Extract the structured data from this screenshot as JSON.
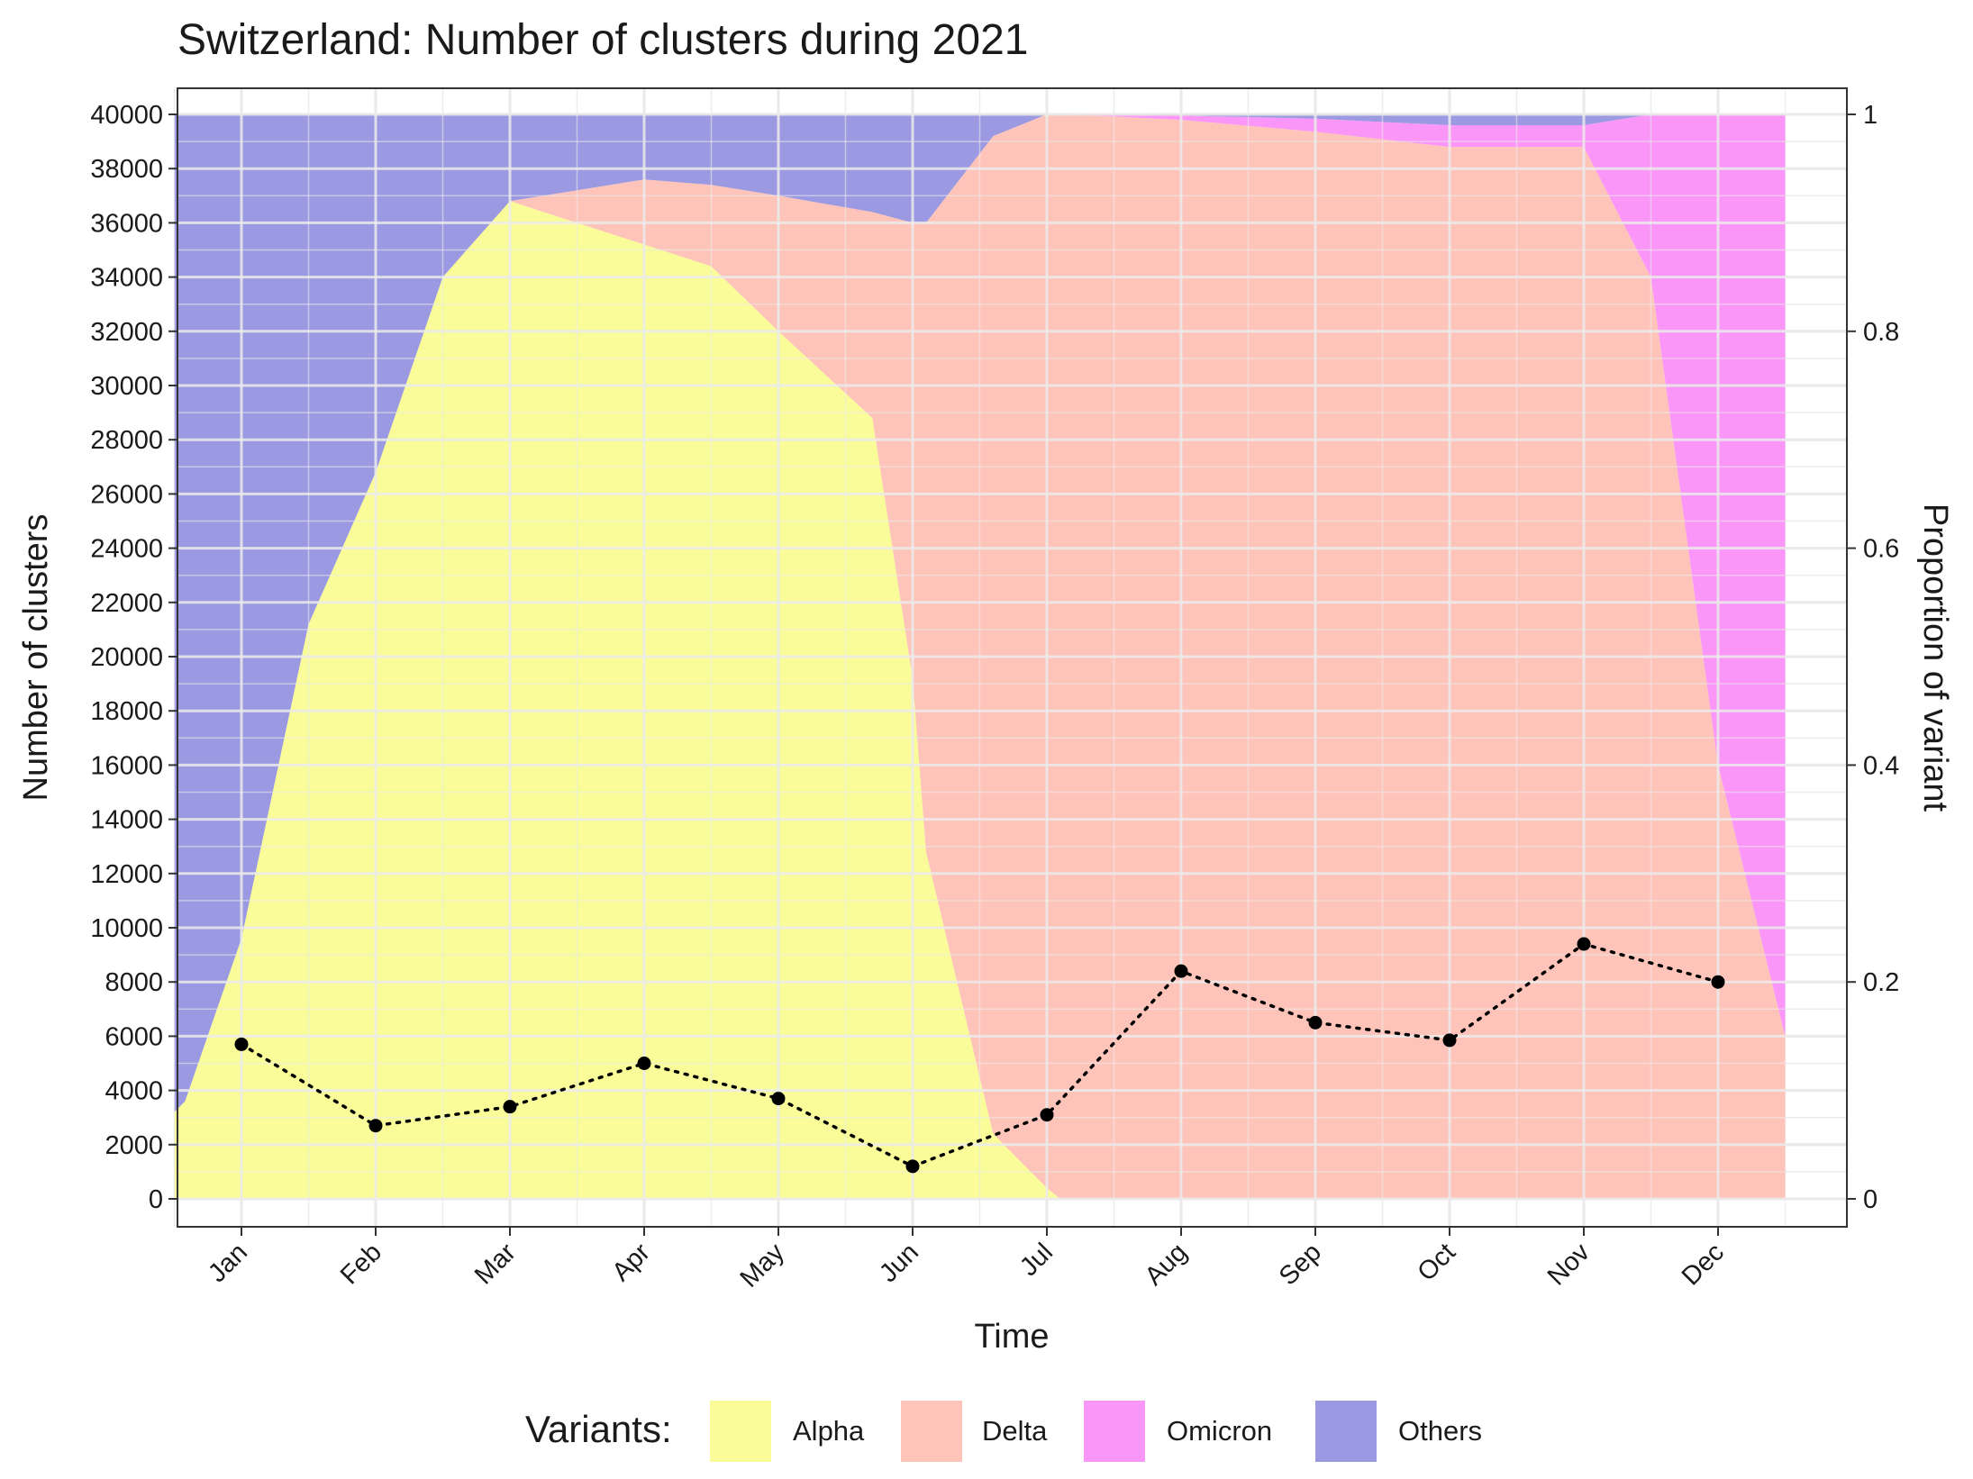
{
  "chart_data": {
    "type": "area",
    "title": "Switzerland: Number of clusters during 2021",
    "xlabel": "Time",
    "ylabel": "Number of clusters",
    "ylabel_right": "Proportion of variant",
    "y_ticks": [
      0,
      2000,
      4000,
      6000,
      8000,
      10000,
      12000,
      14000,
      16000,
      18000,
      20000,
      22000,
      24000,
      26000,
      28000,
      30000,
      32000,
      34000,
      36000,
      38000,
      40000
    ],
    "y_ticks_right": [
      "0",
      "0.2",
      "0.4",
      "0.6",
      "0.8",
      "1"
    ],
    "ylim": [
      0,
      40000
    ],
    "ylim_right": [
      0,
      1
    ],
    "x_ticks": [
      "Jan",
      "Feb",
      "Mar",
      "Apr",
      "May",
      "Jun",
      "Jul",
      "Aug",
      "Sep",
      "Oct",
      "Nov",
      "Dec"
    ],
    "xlim": [
      0.5,
      12.5
    ],
    "grid": true,
    "legend_position": "bottom",
    "legend_title": "Variants:",
    "stacked_series": [
      {
        "name": "Alpha",
        "color": "#f9fc98",
        "x": [
          0.5,
          0.58,
          1.0,
          1.5,
          2.0,
          2.5,
          3.0,
          3.5,
          4.0,
          4.5,
          5.0,
          5.7,
          6.0,
          6.1,
          6.6,
          7.0,
          7.1,
          7.5,
          8.0,
          9.0,
          10.0,
          11.0,
          11.5,
          12.0,
          12.5
        ],
        "values": [
          0.08,
          0.09,
          0.24,
          0.53,
          0.67,
          0.85,
          0.92,
          0.9,
          0.88,
          0.86,
          0.8,
          0.72,
          0.48,
          0.32,
          0.06,
          0.01,
          0.0,
          0.0,
          0.0,
          0.0,
          0.0,
          0.0,
          0.0,
          0.0,
          0.0
        ]
      },
      {
        "name": "Delta",
        "color": "#fec4b9",
        "x": [
          0.5,
          0.58,
          1.0,
          1.5,
          2.0,
          2.5,
          3.0,
          3.5,
          4.0,
          4.5,
          5.0,
          5.7,
          6.0,
          6.1,
          6.6,
          7.0,
          7.1,
          7.5,
          8.0,
          9.0,
          10.0,
          11.0,
          11.5,
          12.0,
          12.5
        ],
        "values": [
          0.0,
          0.0,
          0.0,
          0.0,
          0.0,
          0.0,
          0.0,
          0.03,
          0.06,
          0.075,
          0.125,
          0.19,
          0.42,
          0.58,
          0.92,
          0.99,
          1.0,
          0.998,
          0.995,
          0.984,
          0.97,
          0.97,
          0.85,
          0.4,
          0.15
        ]
      },
      {
        "name": "Omicron",
        "color": "#fa96f8",
        "x": [
          0.5,
          0.58,
          1.0,
          1.5,
          2.0,
          2.5,
          3.0,
          3.5,
          4.0,
          4.5,
          5.0,
          5.7,
          6.0,
          6.1,
          6.6,
          7.0,
          7.1,
          7.5,
          8.0,
          9.0,
          10.0,
          11.0,
          11.5,
          12.0,
          12.5
        ],
        "values": [
          0.0,
          0.0,
          0.0,
          0.0,
          0.0,
          0.0,
          0.0,
          0.0,
          0.0,
          0.0,
          0.0,
          0.0,
          0.0,
          0.0,
          0.0,
          0.0,
          0.0,
          0.002,
          0.004,
          0.012,
          0.02,
          0.02,
          0.15,
          0.6,
          0.85
        ]
      },
      {
        "name": "Others",
        "color": "#9b99e1",
        "x": [
          0.5,
          0.58,
          1.0,
          1.5,
          2.0,
          2.5,
          3.0,
          3.5,
          4.0,
          4.5,
          5.0,
          5.7,
          6.0,
          6.1,
          6.6,
          7.0,
          7.1,
          7.5,
          8.0,
          9.0,
          10.0,
          11.0,
          11.5,
          12.0,
          12.5
        ],
        "values": [
          0.92,
          0.91,
          0.76,
          0.47,
          0.33,
          0.15,
          0.08,
          0.07,
          0.06,
          0.065,
          0.075,
          0.09,
          0.1,
          0.1,
          0.02,
          0.0,
          0.0,
          0.0,
          0.001,
          0.004,
          0.01,
          0.01,
          0.0,
          0.0,
          0.0
        ]
      }
    ],
    "points_series": {
      "name": "Number of clusters",
      "style": "dotted line with points",
      "color": "#000000",
      "x": [
        1,
        2,
        3,
        4,
        5,
        6,
        7,
        8,
        9,
        10,
        11,
        12
      ],
      "values": [
        5700,
        2700,
        3400,
        5000,
        3700,
        1200,
        3100,
        8400,
        6500,
        5850,
        9400,
        8000
      ]
    }
  }
}
